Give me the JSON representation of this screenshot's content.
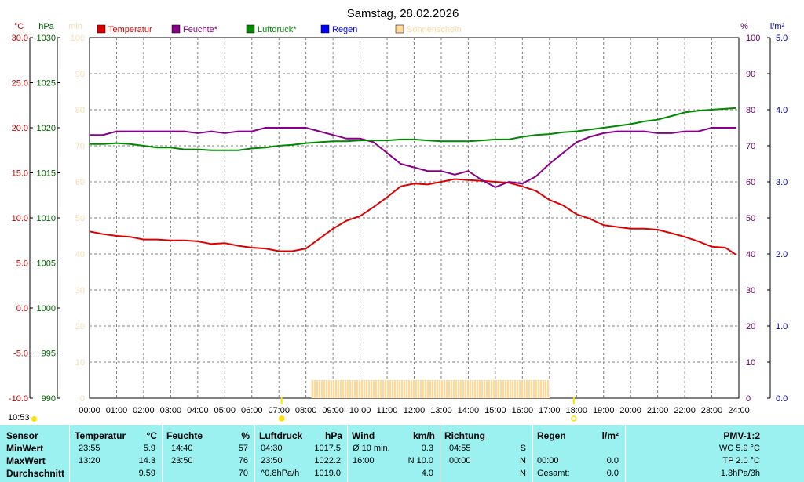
{
  "chart_data": {
    "type": "line",
    "title": "Samstag, 28.02.2026",
    "x_ticks": [
      "00:00",
      "01:00",
      "02:00",
      "03:00",
      "04:00",
      "05:00",
      "06:00",
      "07:00",
      "08:00",
      "09:00",
      "10:00",
      "11:00",
      "12:00",
      "13:00",
      "14:00",
      "15:00",
      "16:00",
      "17:00",
      "18:00",
      "19:00",
      "20:00",
      "21:00",
      "22:00",
      "23:00",
      "24:00"
    ],
    "axes": {
      "temp": {
        "unit": "°C",
        "range": [
          -10,
          30
        ],
        "ticks": [
          "30.0",
          "25.0",
          "20.0",
          "15.0",
          "10.0",
          "5.0",
          "0.0",
          "-5.0",
          "-10.0"
        ],
        "color": "#cc0000"
      },
      "pressure": {
        "unit": "hPa",
        "range": [
          990,
          1030
        ],
        "ticks": [
          "1030",
          "1025",
          "1020",
          "1015",
          "1010",
          "1005",
          "1000",
          "995",
          "990"
        ],
        "color": "#006600"
      },
      "sun": {
        "unit": "min",
        "range": [
          0,
          100
        ],
        "ticks": [
          "100",
          "90",
          "80",
          "70",
          "60",
          "50",
          "40",
          "30",
          "20",
          "10",
          "0"
        ],
        "color": "#f5deb3"
      },
      "humidity": {
        "unit": "%",
        "range": [
          0,
          100
        ],
        "ticks": [
          "100",
          "90",
          "80",
          "70",
          "60",
          "50",
          "40",
          "30",
          "20",
          "10",
          "0"
        ],
        "color": "#660066"
      },
      "rain": {
        "unit": "l/m²",
        "range": [
          0,
          5
        ],
        "ticks": [
          "5.0",
          "4.0",
          "3.0",
          "2.0",
          "1.0",
          "0.0"
        ],
        "color": "#000099"
      }
    },
    "legend": [
      {
        "name": "Temperatur",
        "color": "#dd0000"
      },
      {
        "name": "Feuchte*",
        "color": "#880088"
      },
      {
        "name": "Luftdruck*",
        "color": "#008800"
      },
      {
        "name": "Regen",
        "color": "#0000ff"
      },
      {
        "name": "Sonnenschein",
        "color": "#ffd89a"
      }
    ],
    "series": [
      {
        "name": "Temperatur",
        "axis": "temp",
        "color": "#dd0000",
        "x": [
          0,
          0.5,
          1,
          1.5,
          2,
          2.5,
          3,
          3.5,
          4,
          4.5,
          5,
          5.5,
          6,
          6.5,
          7,
          7.5,
          8,
          8.5,
          9,
          9.5,
          10,
          10.5,
          11,
          11.5,
          12,
          12.5,
          13,
          13.5,
          14,
          14.5,
          15,
          15.5,
          16,
          16.5,
          17,
          17.5,
          18,
          18.5,
          19,
          19.5,
          20,
          20.5,
          21,
          21.5,
          22,
          22.5,
          23,
          23.5,
          23.9
        ],
        "y": [
          8.5,
          8.2,
          8.0,
          7.9,
          7.6,
          7.6,
          7.5,
          7.5,
          7.4,
          7.1,
          7.2,
          6.9,
          6.7,
          6.6,
          6.3,
          6.3,
          6.6,
          7.7,
          8.8,
          9.7,
          10.2,
          11.2,
          12.3,
          13.5,
          13.8,
          13.7,
          14.0,
          14.3,
          14.2,
          14.1,
          14.0,
          13.9,
          13.5,
          13.0,
          12.0,
          11.4,
          10.4,
          9.9,
          9.2,
          9.0,
          8.8,
          8.8,
          8.7,
          8.3,
          7.9,
          7.4,
          6.8,
          6.7,
          5.9
        ]
      },
      {
        "name": "Feuchte*",
        "axis": "humidity",
        "color": "#880088",
        "x": [
          0,
          0.5,
          1,
          1.5,
          2,
          2.5,
          3,
          3.5,
          4,
          4.5,
          5,
          5.5,
          6,
          6.5,
          7,
          7.5,
          8,
          8.5,
          9,
          9.5,
          10,
          10.5,
          11,
          11.5,
          12,
          12.5,
          13,
          13.5,
          14,
          14.5,
          15,
          15.5,
          16,
          16.5,
          17,
          17.5,
          18,
          18.5,
          19,
          19.5,
          20,
          20.5,
          21,
          21.5,
          22,
          22.5,
          23,
          23.5,
          23.9
        ],
        "y": [
          73,
          73,
          74,
          74,
          74,
          74,
          74,
          74,
          73.5,
          74,
          73.5,
          74,
          74,
          75,
          75,
          75,
          75,
          74,
          73,
          72,
          72,
          71,
          68,
          65,
          64,
          63,
          63,
          62,
          63,
          60.5,
          58.5,
          60,
          59.5,
          61.5,
          65,
          68,
          71,
          72.5,
          73.5,
          74,
          74,
          74,
          73.5,
          73.5,
          74,
          74,
          75,
          75,
          75
        ]
      },
      {
        "name": "Luftdruck*",
        "axis": "pressure",
        "color": "#008800",
        "x": [
          0,
          0.5,
          1,
          1.5,
          2,
          2.5,
          3,
          3.5,
          4,
          4.5,
          5,
          5.5,
          6,
          6.5,
          7,
          7.5,
          8,
          8.5,
          9,
          9.5,
          10,
          10.5,
          11,
          11.5,
          12,
          12.5,
          13,
          13.5,
          14,
          14.5,
          15,
          15.5,
          16,
          16.5,
          17,
          17.5,
          18,
          18.5,
          19,
          19.5,
          20,
          20.5,
          21,
          21.5,
          22,
          22.5,
          23,
          23.5,
          23.9
        ],
        "y": [
          1018.2,
          1018.2,
          1018.3,
          1018.2,
          1018.0,
          1017.8,
          1017.8,
          1017.6,
          1017.6,
          1017.5,
          1017.5,
          1017.5,
          1017.7,
          1017.8,
          1018.0,
          1018.1,
          1018.3,
          1018.4,
          1018.5,
          1018.5,
          1018.6,
          1018.6,
          1018.6,
          1018.7,
          1018.7,
          1018.6,
          1018.5,
          1018.5,
          1018.5,
          1018.6,
          1018.7,
          1018.7,
          1019.0,
          1019.2,
          1019.3,
          1019.5,
          1019.6,
          1019.8,
          1020.0,
          1020.2,
          1020.4,
          1020.7,
          1020.9,
          1021.3,
          1021.7,
          1021.9,
          1022.0,
          1022.1,
          1022.2
        ]
      },
      {
        "name": "Sonnenschein",
        "axis": "sun",
        "color": "#ffd89a",
        "type": "bar",
        "x_range": [
          8.2,
          17.0
        ],
        "value": 5
      }
    ],
    "markers": [
      {
        "label": "07:00",
        "x": 7.1,
        "color": "#ffe000",
        "filled": true
      },
      {
        "label": "18:00",
        "x": 17.9,
        "color": "#ffe000",
        "filled": false
      }
    ]
  },
  "clock": "10:53",
  "stats": {
    "headers": {
      "sensor": "Sensor",
      "temperatur": "Temperatur",
      "temp_unit": "°C",
      "feuchte": "Feuchte",
      "feuchte_unit": "%",
      "luftdruck": "Luftdruck",
      "luftdruck_unit": "hPa",
      "wind": "Wind",
      "wind_unit": "km/h",
      "richtung": "Richtung",
      "regen": "Regen",
      "regen_unit": "l/m²",
      "pmv": "PMV-1:2"
    },
    "rows": [
      {
        "label": "MinWert",
        "temp_time": "23:55",
        "temp_val": "5.9",
        "hum_time": "14:40",
        "hum_val": "57",
        "press_time": "04:30",
        "press_val": "1017.5",
        "wind_label": "Ø 10 min.",
        "wind_val": "0.3",
        "dir_time": "04:55",
        "dir_val": "S",
        "rain_label": "",
        "rain_val": "",
        "pmv": "WC 5.9 °C"
      },
      {
        "label": "MaxWert",
        "temp_time": "13:20",
        "temp_val": "14.3",
        "hum_time": "23:50",
        "hum_val": "76",
        "press_time": "23:50",
        "press_val": "1022.2",
        "wind_label": "16:00",
        "wind_val": "N 10.0",
        "dir_time": "00:00",
        "dir_val": "N",
        "rain_label": "00:00",
        "rain_val": "0.0",
        "pmv": "TP 2.0 °C"
      },
      {
        "label": "Durchschnitt",
        "temp_time": "",
        "temp_val": "9.59",
        "hum_time": "",
        "hum_val": "70",
        "press_time": "^0.8hPa/h",
        "press_val": "1019.0",
        "wind_label": "",
        "wind_val": "4.0",
        "dir_time": "",
        "dir_val": "N",
        "rain_label": "Gesamt:",
        "rain_val": "0.0",
        "pmv": "1.3hPa/3h"
      }
    ]
  }
}
